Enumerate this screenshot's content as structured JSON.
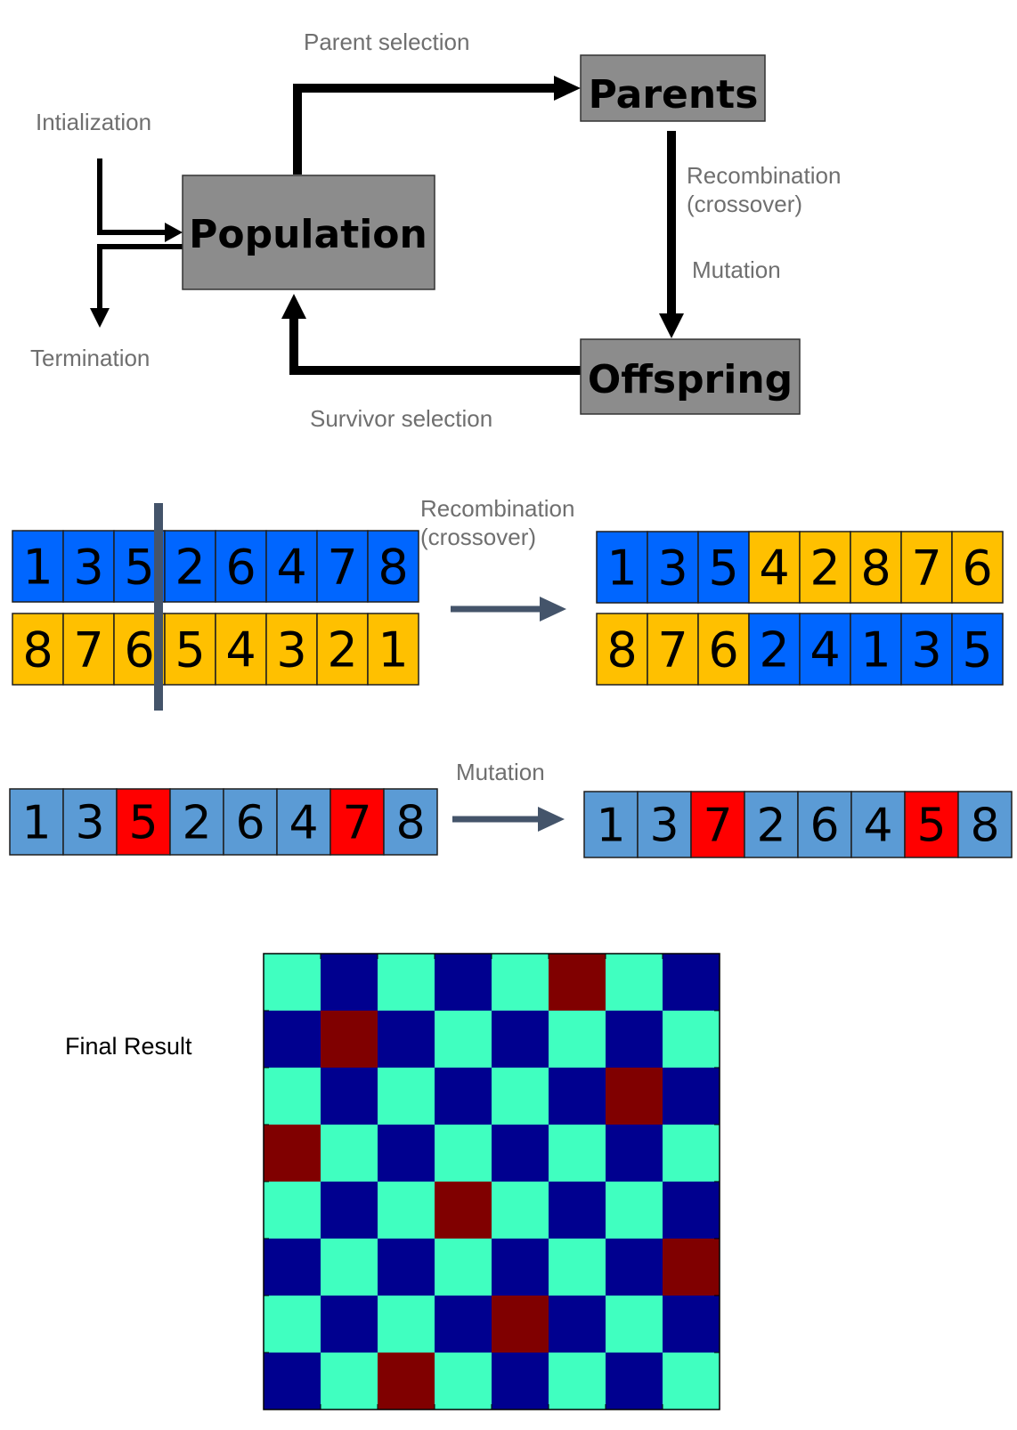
{
  "flow": {
    "initialization_label": "Intialization",
    "termination_label": "Termination",
    "parent_selection_label": "Parent selection",
    "recombination_label_1": "Recombination",
    "recombination_label_2": "(crossover)",
    "mutation_label": "Mutation",
    "survivor_selection_label": "Survivor selection",
    "population_box": "Population",
    "parents_box": "Parents",
    "offspring_box": "Offspring",
    "box_fill": "#8c8c8c"
  },
  "crossover": {
    "label_1": "Recombination",
    "label_2": "(crossover)",
    "parent_a": [
      "1",
      "3",
      "5",
      "2",
      "6",
      "4",
      "7",
      "8"
    ],
    "parent_b": [
      "8",
      "7",
      "6",
      "5",
      "4",
      "3",
      "2",
      "1"
    ],
    "child_a": [
      "1",
      "3",
      "5",
      "4",
      "2",
      "8",
      "7",
      "6"
    ],
    "child_b": [
      "8",
      "7",
      "6",
      "2",
      "4",
      "1",
      "3",
      "5"
    ],
    "child_a_colors": [
      "blue",
      "blue",
      "blue",
      "yellow",
      "yellow",
      "yellow",
      "yellow",
      "yellow"
    ],
    "child_b_colors": [
      "yellow",
      "yellow",
      "yellow",
      "blue",
      "blue",
      "blue",
      "blue",
      "blue"
    ],
    "cut_after_index": 2,
    "colors": {
      "blue": "#0066ff",
      "yellow": "#ffc000",
      "cut_line": "#44546a"
    }
  },
  "mutation": {
    "label": "Mutation",
    "before": [
      "1",
      "3",
      "5",
      "2",
      "6",
      "4",
      "7",
      "8"
    ],
    "after": [
      "1",
      "3",
      "7",
      "2",
      "6",
      "4",
      "5",
      "8"
    ],
    "swapped_indices": [
      2,
      6
    ],
    "colors": {
      "normal": "#5b9bd5",
      "swapped": "#ff0000"
    }
  },
  "final": {
    "label": "Final Result",
    "queen_columns": [
      5,
      1,
      6,
      0,
      3,
      7,
      4,
      2
    ],
    "colors": {
      "dark": "#00008f",
      "light": "#40ffc0",
      "queen": "#800000"
    }
  }
}
